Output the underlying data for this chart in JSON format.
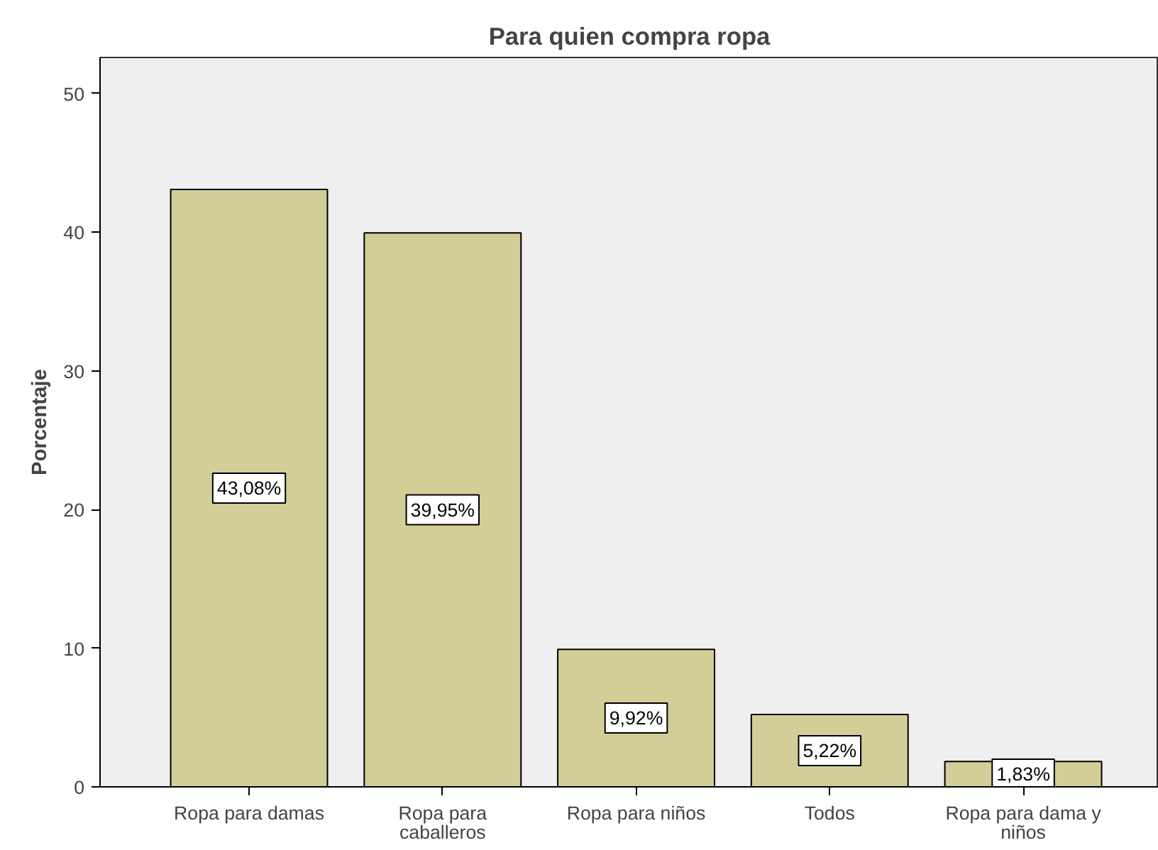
{
  "chart_data": {
    "type": "bar",
    "title": "Para quien compra ropa",
    "ylabel": "Porcentaje",
    "categories": [
      "Ropa para damas",
      "Ropa para caballeros",
      "Ropa para niños",
      "Todos",
      "Ropa para dama y niños"
    ],
    "values": [
      43.08,
      39.95,
      9.92,
      5.22,
      1.83
    ],
    "value_labels": [
      "43,08%",
      "39,95%",
      "9,92%",
      "5,22%",
      "1,83%"
    ],
    "color": "#d3ce97",
    "ylim": [
      0,
      52.6
    ],
    "yticks": [
      0,
      10,
      20,
      30,
      40,
      50
    ]
  }
}
